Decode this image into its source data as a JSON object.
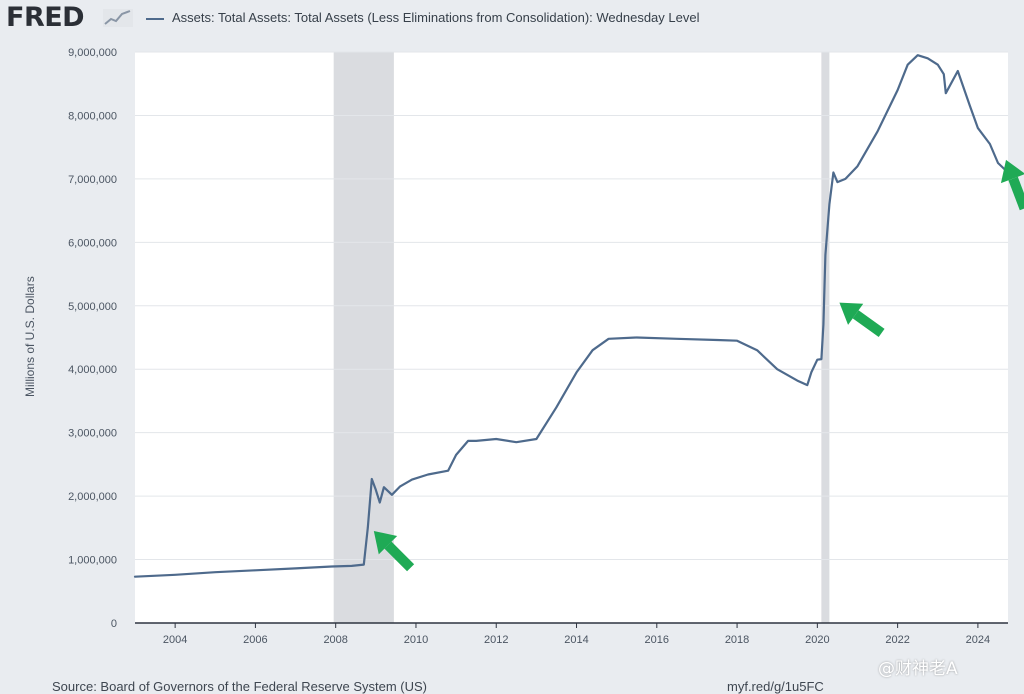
{
  "header": {
    "logo_text": "FRED",
    "series_title": "Assets: Total Assets: Total Assets (Less Eliminations from Consolidation): Wednesday Level"
  },
  "footer": {
    "source": "Source: Board of Governors of the Federal Reserve System (US)",
    "short_link": "myf.red/g/1u5FC"
  },
  "watermark": "@财神老A",
  "colors": {
    "line": "#4e6a8c",
    "recession": "#dadce0",
    "arrow": "#1faa55",
    "plot_bg": "#ffffff",
    "page_bg": "#e9ecf0"
  },
  "chart_data": {
    "type": "line",
    "title": "Assets: Total Assets: Total Assets (Less Eliminations from Consolidation): Wednesday Level",
    "xlabel": "",
    "ylabel": "Millions of U.S. Dollars",
    "xlim": [
      2003.0,
      2024.75
    ],
    "ylim": [
      0,
      9000000
    ],
    "x_ticks": [
      2004,
      2006,
      2008,
      2010,
      2012,
      2014,
      2016,
      2018,
      2020,
      2022,
      2024
    ],
    "x_tick_labels": [
      "2004",
      "2006",
      "2008",
      "2010",
      "2012",
      "2014",
      "2016",
      "2018",
      "2020",
      "2022",
      "2024"
    ],
    "y_ticks": [
      0,
      1000000,
      2000000,
      3000000,
      4000000,
      5000000,
      6000000,
      7000000,
      8000000,
      9000000
    ],
    "y_tick_labels": [
      "0",
      "1,000,000",
      "2,000,000",
      "3,000,000",
      "4,000,000",
      "5,000,000",
      "6,000,000",
      "7,000,000",
      "8,000,000",
      "9,000,000"
    ],
    "grid": true,
    "recessions": [
      [
        2007.95,
        2009.45
      ],
      [
        2020.1,
        2020.3
      ]
    ],
    "annotations": [
      {
        "type": "arrow",
        "points_to": [
          2008.95,
          1450000
        ]
      },
      {
        "type": "arrow",
        "points_to": [
          2020.55,
          5050000
        ]
      },
      {
        "type": "arrow",
        "points_to": [
          2024.8,
          7300000
        ]
      }
    ],
    "series": [
      {
        "x": [
          2003.0,
          2004.0,
          2005.0,
          2006.0,
          2007.0,
          2007.9,
          2008.4,
          2008.7,
          2008.8,
          2008.9,
          2009.0,
          2009.1,
          2009.2,
          2009.4,
          2009.6,
          2009.9,
          2010.3,
          2010.8,
          2011.0,
          2011.3,
          2011.5,
          2012.0,
          2012.5,
          2013.0,
          2013.5,
          2014.0,
          2014.4,
          2014.8,
          2015.5,
          2016.5,
          2017.5,
          2018.0,
          2018.5,
          2019.0,
          2019.5,
          2019.75,
          2019.85,
          2020.0,
          2020.1,
          2020.15,
          2020.2,
          2020.3,
          2020.4,
          2020.5,
          2020.7,
          2021.0,
          2021.5,
          2022.0,
          2022.25,
          2022.5,
          2022.75,
          2023.0,
          2023.15,
          2023.2,
          2023.5,
          2023.8,
          2024.0,
          2024.3,
          2024.5,
          2024.75
        ],
        "y": [
          730000,
          760000,
          800000,
          830000,
          860000,
          890000,
          900000,
          920000,
          1500000,
          2270000,
          2100000,
          1900000,
          2140000,
          2020000,
          2150000,
          2260000,
          2340000,
          2400000,
          2650000,
          2870000,
          2870000,
          2900000,
          2850000,
          2900000,
          3400000,
          3950000,
          4300000,
          4480000,
          4500000,
          4480000,
          4460000,
          4450000,
          4300000,
          4000000,
          3820000,
          3750000,
          3950000,
          4150000,
          4160000,
          4700000,
          5800000,
          6600000,
          7100000,
          6950000,
          7000000,
          7200000,
          7750000,
          8400000,
          8800000,
          8950000,
          8900000,
          8800000,
          8650000,
          8350000,
          8700000,
          8150000,
          7800000,
          7550000,
          7250000,
          7100000
        ]
      }
    ]
  }
}
